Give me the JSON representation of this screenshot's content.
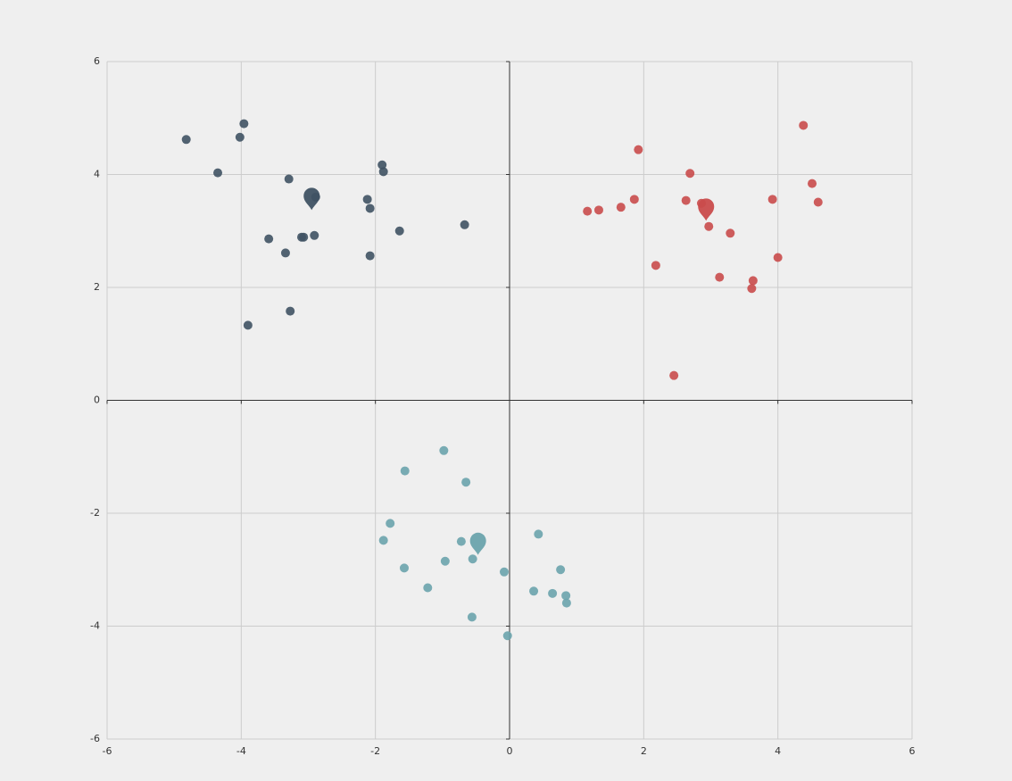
{
  "chart_data": {
    "type": "scatter",
    "xlim": [
      -6,
      6
    ],
    "ylim": [
      -6,
      6
    ],
    "xticks": [
      -6,
      -4,
      -2,
      0,
      2,
      4,
      6
    ],
    "yticks": [
      -6,
      -4,
      -2,
      0,
      2,
      4,
      6
    ],
    "grid": true,
    "series": [
      {
        "color": "#3f5263",
        "symbol": "circle",
        "x": [
          -4.82,
          -3.96,
          -4.02,
          -4.35,
          -3.29,
          -1.9,
          -1.88,
          -2.12,
          -2.08,
          -2.89,
          -3.59,
          -3.07,
          -3.1,
          -2.91,
          -3.34,
          -1.64,
          -0.67,
          -2.08,
          -3.27,
          -3.9
        ],
        "values": [
          4.62,
          4.9,
          4.66,
          4.03,
          3.92,
          4.17,
          4.05,
          3.56,
          3.4,
          3.6,
          2.86,
          2.89,
          2.89,
          2.92,
          2.61,
          3.0,
          3.11,
          2.56,
          1.58,
          1.33
        ]
      },
      {
        "color": "#c94b4b",
        "symbol": "circle",
        "x": [
          4.38,
          1.92,
          2.69,
          4.51,
          3.92,
          4.6,
          1.86,
          2.63,
          2.86,
          1.16,
          1.33,
          1.66,
          2.97,
          3.29,
          4.0,
          2.18,
          3.13,
          3.63,
          3.61,
          2.45
        ],
        "values": [
          4.87,
          4.44,
          4.02,
          3.84,
          3.56,
          3.51,
          3.56,
          3.54,
          3.49,
          3.35,
          3.37,
          3.42,
          3.08,
          2.96,
          2.53,
          2.39,
          2.18,
          2.12,
          1.98,
          0.44
        ]
      },
      {
        "color": "#6aa3ac",
        "symbol": "circle",
        "x": [
          -0.98,
          -1.56,
          -0.65,
          -1.78,
          -1.88,
          -0.72,
          0.43,
          -1.57,
          -0.96,
          -0.55,
          -0.08,
          0.76,
          -1.22,
          0.36,
          0.64,
          0.84,
          0.85,
          -0.56,
          -0.03
        ],
        "values": [
          -0.89,
          -1.25,
          -1.45,
          -2.18,
          -2.48,
          -2.5,
          -2.37,
          -2.97,
          -2.85,
          -2.81,
          -3.04,
          -3.0,
          -3.32,
          -3.38,
          -3.42,
          -3.46,
          -3.59,
          -3.84,
          -4.17
        ]
      },
      {
        "color": "#3f5263",
        "symbol": "pin",
        "x": [
          -2.95
        ],
        "values": [
          3.56
        ]
      },
      {
        "color": "#c94b4b",
        "symbol": "pin",
        "x": [
          2.93
        ],
        "values": [
          3.37
        ]
      },
      {
        "color": "#6aa3ac",
        "symbol": "pin",
        "x": [
          -0.47
        ],
        "values": [
          -2.55
        ]
      }
    ]
  }
}
